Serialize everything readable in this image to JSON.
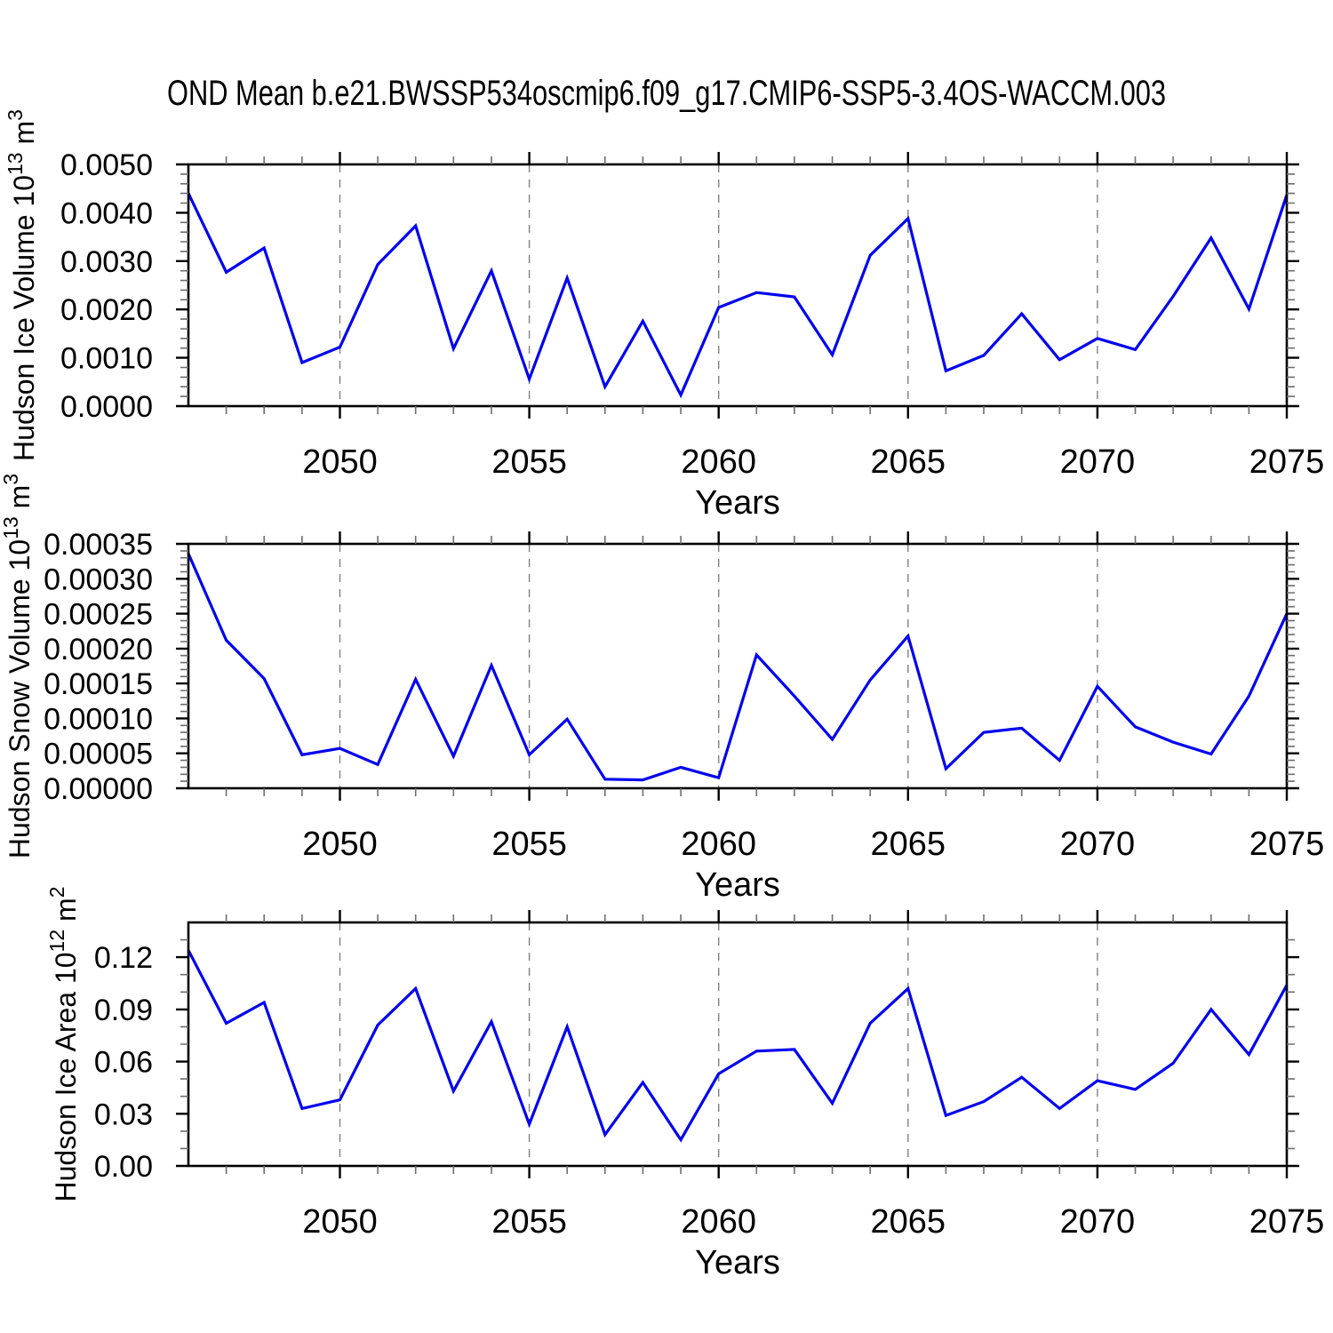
{
  "title": "OND Mean b.e21.BWSSP534oscmip6.f09_g17.CMIP6-SSP5-3.4OS-WACCM.003",
  "colors": {
    "line": "#0000f0",
    "grid": "#808080",
    "axis": "#000000",
    "minor_tick": "#6e6e6e",
    "background": "#ffffff"
  },
  "chart_data": [
    {
      "type": "line",
      "id": "hudson-ice-volume",
      "ylabel": "Hudson Ice Volume 10^13 m^3",
      "ylabel_parts": {
        "base": "Hudson Ice Volume 10",
        "sup1": "13",
        "mid": " m",
        "sup2": "3"
      },
      "xlabel": "Years",
      "x": [
        2046,
        2047,
        2048,
        2049,
        2050,
        2051,
        2052,
        2053,
        2054,
        2055,
        2056,
        2057,
        2058,
        2059,
        2060,
        2061,
        2062,
        2063,
        2064,
        2065,
        2066,
        2067,
        2068,
        2069,
        2070,
        2071,
        2072,
        2073,
        2074,
        2075
      ],
      "y": [
        0.0044,
        0.00277,
        0.00327,
        0.0009,
        0.00122,
        0.00293,
        0.00373,
        0.00119,
        0.0028,
        0.00056,
        0.00265,
        0.0004,
        0.00176,
        0.00023,
        0.00204,
        0.00235,
        0.00226,
        0.00106,
        0.00312,
        0.00388,
        0.00073,
        0.00105,
        0.00191,
        0.00096,
        0.0014,
        0.00117,
        0.00227,
        0.00348,
        0.00201,
        0.00437
      ],
      "ylim": [
        0,
        0.005
      ],
      "ytick_values": [
        0,
        0.001,
        0.002,
        0.003,
        0.004,
        0.005
      ],
      "ytick_labels": [
        "0.0000",
        "0.0010",
        "0.0020",
        "0.0030",
        "0.0040",
        "0.0050"
      ],
      "y_minor_step": 0.0002,
      "xtick_major": [
        2050,
        2055,
        2060,
        2065,
        2070,
        2075
      ],
      "xtick_minor_step": 1,
      "xlim": [
        2046,
        2075
      ],
      "grid_x": [
        2050,
        2055,
        2060,
        2065,
        2070
      ],
      "grid_style": "dashed",
      "legend": "none"
    },
    {
      "type": "line",
      "id": "hudson-snow-volume",
      "ylabel": "Hudson Snow Volume 10^13 m^3",
      "ylabel_parts": {
        "base": "Hudson Snow Volume 10",
        "sup1": "13",
        "mid": " m",
        "sup2": "3"
      },
      "xlabel": "Years",
      "x": [
        2046,
        2047,
        2048,
        2049,
        2050,
        2051,
        2052,
        2053,
        2054,
        2055,
        2056,
        2057,
        2058,
        2059,
        2060,
        2061,
        2062,
        2063,
        2064,
        2065,
        2066,
        2067,
        2068,
        2069,
        2070,
        2071,
        2072,
        2073,
        2074,
        2075
      ],
      "y": [
        0.000336,
        0.000212,
        0.000157,
        4.8e-05,
        5.7e-05,
        3.4e-05,
        0.000156,
        4.6e-05,
        0.000176,
        4.8e-05,
        9.9e-05,
        1.3e-05,
        1.2e-05,
        3e-05,
        1.5e-05,
        0.000191,
        0.000132,
        7e-05,
        0.000155,
        0.000218,
        2.8e-05,
        8e-05,
        8.6e-05,
        4e-05,
        0.000146,
        8.8e-05,
        6.6e-05,
        4.9e-05,
        0.000132,
        0.00025
      ],
      "ylim": [
        0,
        0.00035
      ],
      "ytick_values": [
        0,
        5e-05,
        0.0001,
        0.00015,
        0.0002,
        0.00025,
        0.0003,
        0.00035
      ],
      "ytick_labels": [
        "0.00000",
        "0.00005",
        "0.00010",
        "0.00015",
        "0.00020",
        "0.00025",
        "0.00030",
        "0.00035"
      ],
      "y_minor_step": 1e-05,
      "xtick_major": [
        2050,
        2055,
        2060,
        2065,
        2070,
        2075
      ],
      "xtick_minor_step": 1,
      "xlim": [
        2046,
        2075
      ],
      "grid_x": [
        2050,
        2055,
        2060,
        2065,
        2070
      ],
      "grid_style": "dashed",
      "legend": "none"
    },
    {
      "type": "line",
      "id": "hudson-ice-area",
      "ylabel": "Hudson Ice Area 10^12 m^2",
      "ylabel_parts": {
        "base": "Hudson Ice Area 10",
        "sup1": "12",
        "mid": " m",
        "sup2": "2"
      },
      "xlabel": "Years",
      "x": [
        2046,
        2047,
        2048,
        2049,
        2050,
        2051,
        2052,
        2053,
        2054,
        2055,
        2056,
        2057,
        2058,
        2059,
        2060,
        2061,
        2062,
        2063,
        2064,
        2065,
        2066,
        2067,
        2068,
        2069,
        2070,
        2071,
        2072,
        2073,
        2074,
        2075
      ],
      "y": [
        0.124,
        0.082,
        0.094,
        0.033,
        0.038,
        0.081,
        0.102,
        0.043,
        0.083,
        0.024,
        0.08,
        0.018,
        0.048,
        0.015,
        0.053,
        0.066,
        0.067,
        0.036,
        0.082,
        0.102,
        0.029,
        0.037,
        0.051,
        0.033,
        0.049,
        0.044,
        0.059,
        0.09,
        0.064,
        0.104
      ],
      "ylim": [
        0,
        0.14
      ],
      "ytick_values": [
        0,
        0.03,
        0.06,
        0.09,
        0.12
      ],
      "ytick_labels": [
        "0.00",
        "0.03",
        "0.06",
        "0.09",
        "0.12"
      ],
      "y_minor_step": 0.01,
      "xtick_major": [
        2050,
        2055,
        2060,
        2065,
        2070,
        2075
      ],
      "xtick_minor_step": 1,
      "xlim": [
        2046,
        2075
      ],
      "grid_x": [
        2050,
        2055,
        2060,
        2065,
        2070
      ],
      "grid_style": "dashed",
      "legend": "none"
    }
  ]
}
